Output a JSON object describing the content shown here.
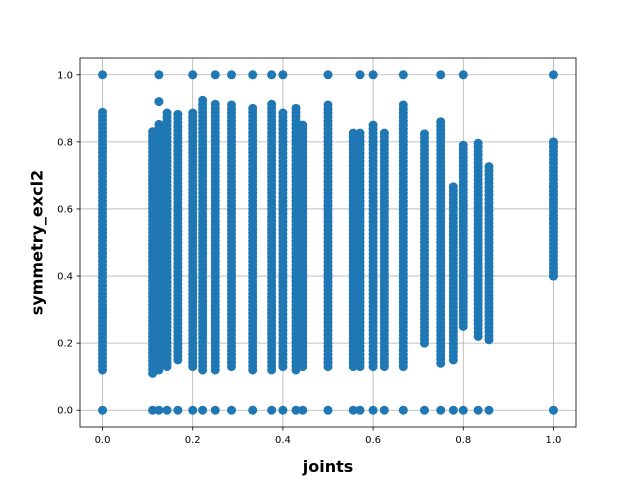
{
  "chart_data": {
    "type": "scatter",
    "title": "",
    "xlabel": "joints",
    "ylabel": "symmetry_excl2",
    "xlim": [
      -0.05,
      1.05
    ],
    "ylim": [
      -0.05,
      1.05
    ],
    "xticks": [
      0.0,
      0.2,
      0.4,
      0.6,
      0.8,
      1.0
    ],
    "yticks": [
      0.0,
      0.2,
      0.4,
      0.6,
      0.8,
      1.0
    ],
    "xtick_labels": [
      "0.0",
      "0.2",
      "0.4",
      "0.6",
      "0.8",
      "1.0"
    ],
    "ytick_labels": [
      "0.0",
      "0.2",
      "0.4",
      "0.6",
      "0.8",
      "1.0"
    ],
    "grid": true,
    "marker_color": "#1f77b4",
    "columns": [
      {
        "x": 0.0,
        "y_min": 0.12,
        "y_max": 0.89,
        "extra": [
          0.0,
          1.0
        ]
      },
      {
        "x": 0.111,
        "y_min": 0.11,
        "y_max": 0.83,
        "extra": [
          0.0
        ]
      },
      {
        "x": 0.125,
        "y_min": 0.12,
        "y_max": 0.86,
        "extra": [
          0.0,
          0.92,
          1.0
        ]
      },
      {
        "x": 0.143,
        "y_min": 0.13,
        "y_max": 0.89,
        "extra": [
          0.0
        ]
      },
      {
        "x": 0.167,
        "y_min": 0.15,
        "y_max": 0.89,
        "extra": [
          0.0
        ]
      },
      {
        "x": 0.2,
        "y_min": 0.13,
        "y_max": 0.89,
        "extra": [
          0.0,
          1.0
        ]
      },
      {
        "x": 0.222,
        "y_min": 0.12,
        "y_max": 0.93,
        "extra": [
          0.0
        ]
      },
      {
        "x": 0.25,
        "y_min": 0.12,
        "y_max": 0.92,
        "extra": [
          0.0,
          1.0
        ]
      },
      {
        "x": 0.286,
        "y_min": 0.13,
        "y_max": 0.91,
        "extra": [
          0.0,
          1.0
        ]
      },
      {
        "x": 0.333,
        "y_min": 0.12,
        "y_max": 0.91,
        "extra": [
          0.0,
          1.0
        ]
      },
      {
        "x": 0.375,
        "y_min": 0.12,
        "y_max": 0.92,
        "extra": [
          0.0,
          1.0
        ]
      },
      {
        "x": 0.4,
        "y_min": 0.13,
        "y_max": 0.89,
        "extra": [
          0.0,
          1.0
        ]
      },
      {
        "x": 0.429,
        "y_min": 0.12,
        "y_max": 0.91,
        "extra": [
          0.0
        ]
      },
      {
        "x": 0.444,
        "y_min": 0.13,
        "y_max": 0.86,
        "extra": [
          0.0
        ]
      },
      {
        "x": 0.5,
        "y_min": 0.13,
        "y_max": 0.92,
        "extra": [
          0.0,
          1.0
        ]
      },
      {
        "x": 0.556,
        "y_min": 0.13,
        "y_max": 0.83,
        "extra": [
          0.0
        ]
      },
      {
        "x": 0.571,
        "y_min": 0.13,
        "y_max": 0.83,
        "extra": [
          0.0,
          1.0
        ]
      },
      {
        "x": 0.6,
        "y_min": 0.13,
        "y_max": 0.86,
        "extra": [
          0.0,
          1.0
        ]
      },
      {
        "x": 0.625,
        "y_min": 0.13,
        "y_max": 0.83,
        "extra": [
          0.0
        ]
      },
      {
        "x": 0.667,
        "y_min": 0.13,
        "y_max": 0.91,
        "extra": [
          0.0,
          1.0
        ]
      },
      {
        "x": 0.714,
        "y_min": 0.2,
        "y_max": 0.83,
        "extra": [
          0.0
        ]
      },
      {
        "x": 0.75,
        "y_min": 0.14,
        "y_max": 0.86,
        "extra": [
          0.0,
          1.0
        ]
      },
      {
        "x": 0.778,
        "y_min": 0.15,
        "y_max": 0.67,
        "extra": [
          0.0
        ]
      },
      {
        "x": 0.8,
        "y_min": 0.25,
        "y_max": 0.8,
        "extra": [
          0.0,
          1.0
        ]
      },
      {
        "x": 0.833,
        "y_min": 0.22,
        "y_max": 0.8,
        "extra": [
          0.0
        ]
      },
      {
        "x": 0.857,
        "y_min": 0.21,
        "y_max": 0.73,
        "extra": [
          0.0
        ]
      },
      {
        "x": 1.0,
        "y_min": 0.4,
        "y_max": 0.8,
        "extra": [
          0.0,
          0.4,
          0.57,
          0.67,
          0.8,
          1.0
        ]
      }
    ]
  }
}
